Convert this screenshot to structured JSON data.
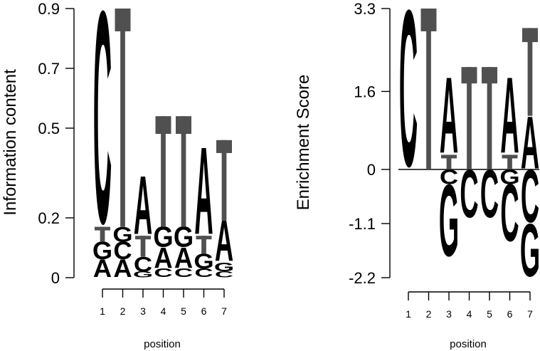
{
  "colors": {
    "A": "#f46b64",
    "C": "#c0cde4",
    "G": "#5e5aa5",
    "T": "#505050"
  },
  "chart_data": [
    {
      "type": "sequence-logo",
      "ylabel": "Information content",
      "xlabel": "position",
      "ylim": [
        0,
        0.9
      ],
      "yticks": [
        0,
        0.2,
        0.5,
        0.7,
        0.9
      ],
      "ytick_labels": [
        "0",
        "0.2",
        "0.5",
        "0.7",
        "0.9"
      ],
      "positions": [
        "1",
        "2",
        "3",
        "4",
        "5",
        "6",
        "7"
      ],
      "columns": [
        {
          "position": "1",
          "stack": [
            {
              "letter": "A",
              "height": 0.06
            },
            {
              "letter": "G",
              "height": 0.06
            },
            {
              "letter": "T",
              "height": 0.05
            },
            {
              "letter": "C",
              "height": 0.73
            }
          ]
        },
        {
          "position": "2",
          "stack": [
            {
              "letter": "A",
              "height": 0.06
            },
            {
              "letter": "C",
              "height": 0.06
            },
            {
              "letter": "G",
              "height": 0.05
            },
            {
              "letter": "T",
              "height": 0.73
            }
          ]
        },
        {
          "position": "3",
          "stack": [
            {
              "letter": "G",
              "height": 0.02
            },
            {
              "letter": "C",
              "height": 0.05
            },
            {
              "letter": "T",
              "height": 0.07
            },
            {
              "letter": "A",
              "height": 0.2
            }
          ]
        },
        {
          "position": "4",
          "stack": [
            {
              "letter": "C",
              "height": 0.03
            },
            {
              "letter": "A",
              "height": 0.07
            },
            {
              "letter": "G",
              "height": 0.07
            },
            {
              "letter": "T",
              "height": 0.37
            }
          ]
        },
        {
          "position": "5",
          "stack": [
            {
              "letter": "C",
              "height": 0.03
            },
            {
              "letter": "A",
              "height": 0.07
            },
            {
              "letter": "G",
              "height": 0.07
            },
            {
              "letter": "T",
              "height": 0.37
            }
          ]
        },
        {
          "position": "6",
          "stack": [
            {
              "letter": "C",
              "height": 0.03
            },
            {
              "letter": "G",
              "height": 0.05
            },
            {
              "letter": "T",
              "height": 0.06
            },
            {
              "letter": "A",
              "height": 0.3
            }
          ]
        },
        {
          "position": "7",
          "stack": [
            {
              "letter": "C",
              "height": 0.02
            },
            {
              "letter": "G",
              "height": 0.03
            },
            {
              "letter": "A",
              "height": 0.14
            },
            {
              "letter": "T",
              "height": 0.27
            }
          ]
        }
      ]
    },
    {
      "type": "enrichment-logo",
      "ylabel": "Enrichment Score",
      "xlabel": "position",
      "ylim": [
        -2.2,
        3.3
      ],
      "yticks": [
        -2.2,
        -1.1,
        0,
        1.6,
        3.3
      ],
      "ytick_labels": [
        "-2.2",
        "-1.1",
        "0",
        "1.6",
        "3.3"
      ],
      "positions": [
        "1",
        "2",
        "3",
        "4",
        "5",
        "6",
        "7"
      ],
      "columns": [
        {
          "position": "1",
          "positive": [
            {
              "letter": "C",
              "height": 3.3
            }
          ],
          "negative": []
        },
        {
          "position": "2",
          "positive": [
            {
              "letter": "T",
              "height": 3.3
            }
          ],
          "negative": []
        },
        {
          "position": "3",
          "positive": [
            {
              "letter": "T",
              "height": 0.3
            },
            {
              "letter": "A",
              "height": 1.6
            }
          ],
          "negative": [
            {
              "letter": "C",
              "height": 0.3
            },
            {
              "letter": "G",
              "height": 1.5
            }
          ]
        },
        {
          "position": "4",
          "positive": [
            {
              "letter": "T",
              "height": 2.1
            }
          ],
          "negative": [
            {
              "letter": "C",
              "height": 1.0
            }
          ]
        },
        {
          "position": "5",
          "positive": [
            {
              "letter": "T",
              "height": 2.1
            }
          ],
          "negative": [
            {
              "letter": "C",
              "height": 1.0
            }
          ]
        },
        {
          "position": "6",
          "positive": [
            {
              "letter": "T",
              "height": 0.3
            },
            {
              "letter": "A",
              "height": 1.6
            }
          ],
          "negative": [
            {
              "letter": "G",
              "height": 0.3
            },
            {
              "letter": "C",
              "height": 1.2
            }
          ]
        },
        {
          "position": "7",
          "positive": [
            {
              "letter": "A",
              "height": 1.1
            },
            {
              "letter": "T",
              "height": 1.8
            }
          ],
          "negative": [
            {
              "letter": "C",
              "height": 1.1
            },
            {
              "letter": "G",
              "height": 1.1
            }
          ]
        }
      ]
    }
  ]
}
